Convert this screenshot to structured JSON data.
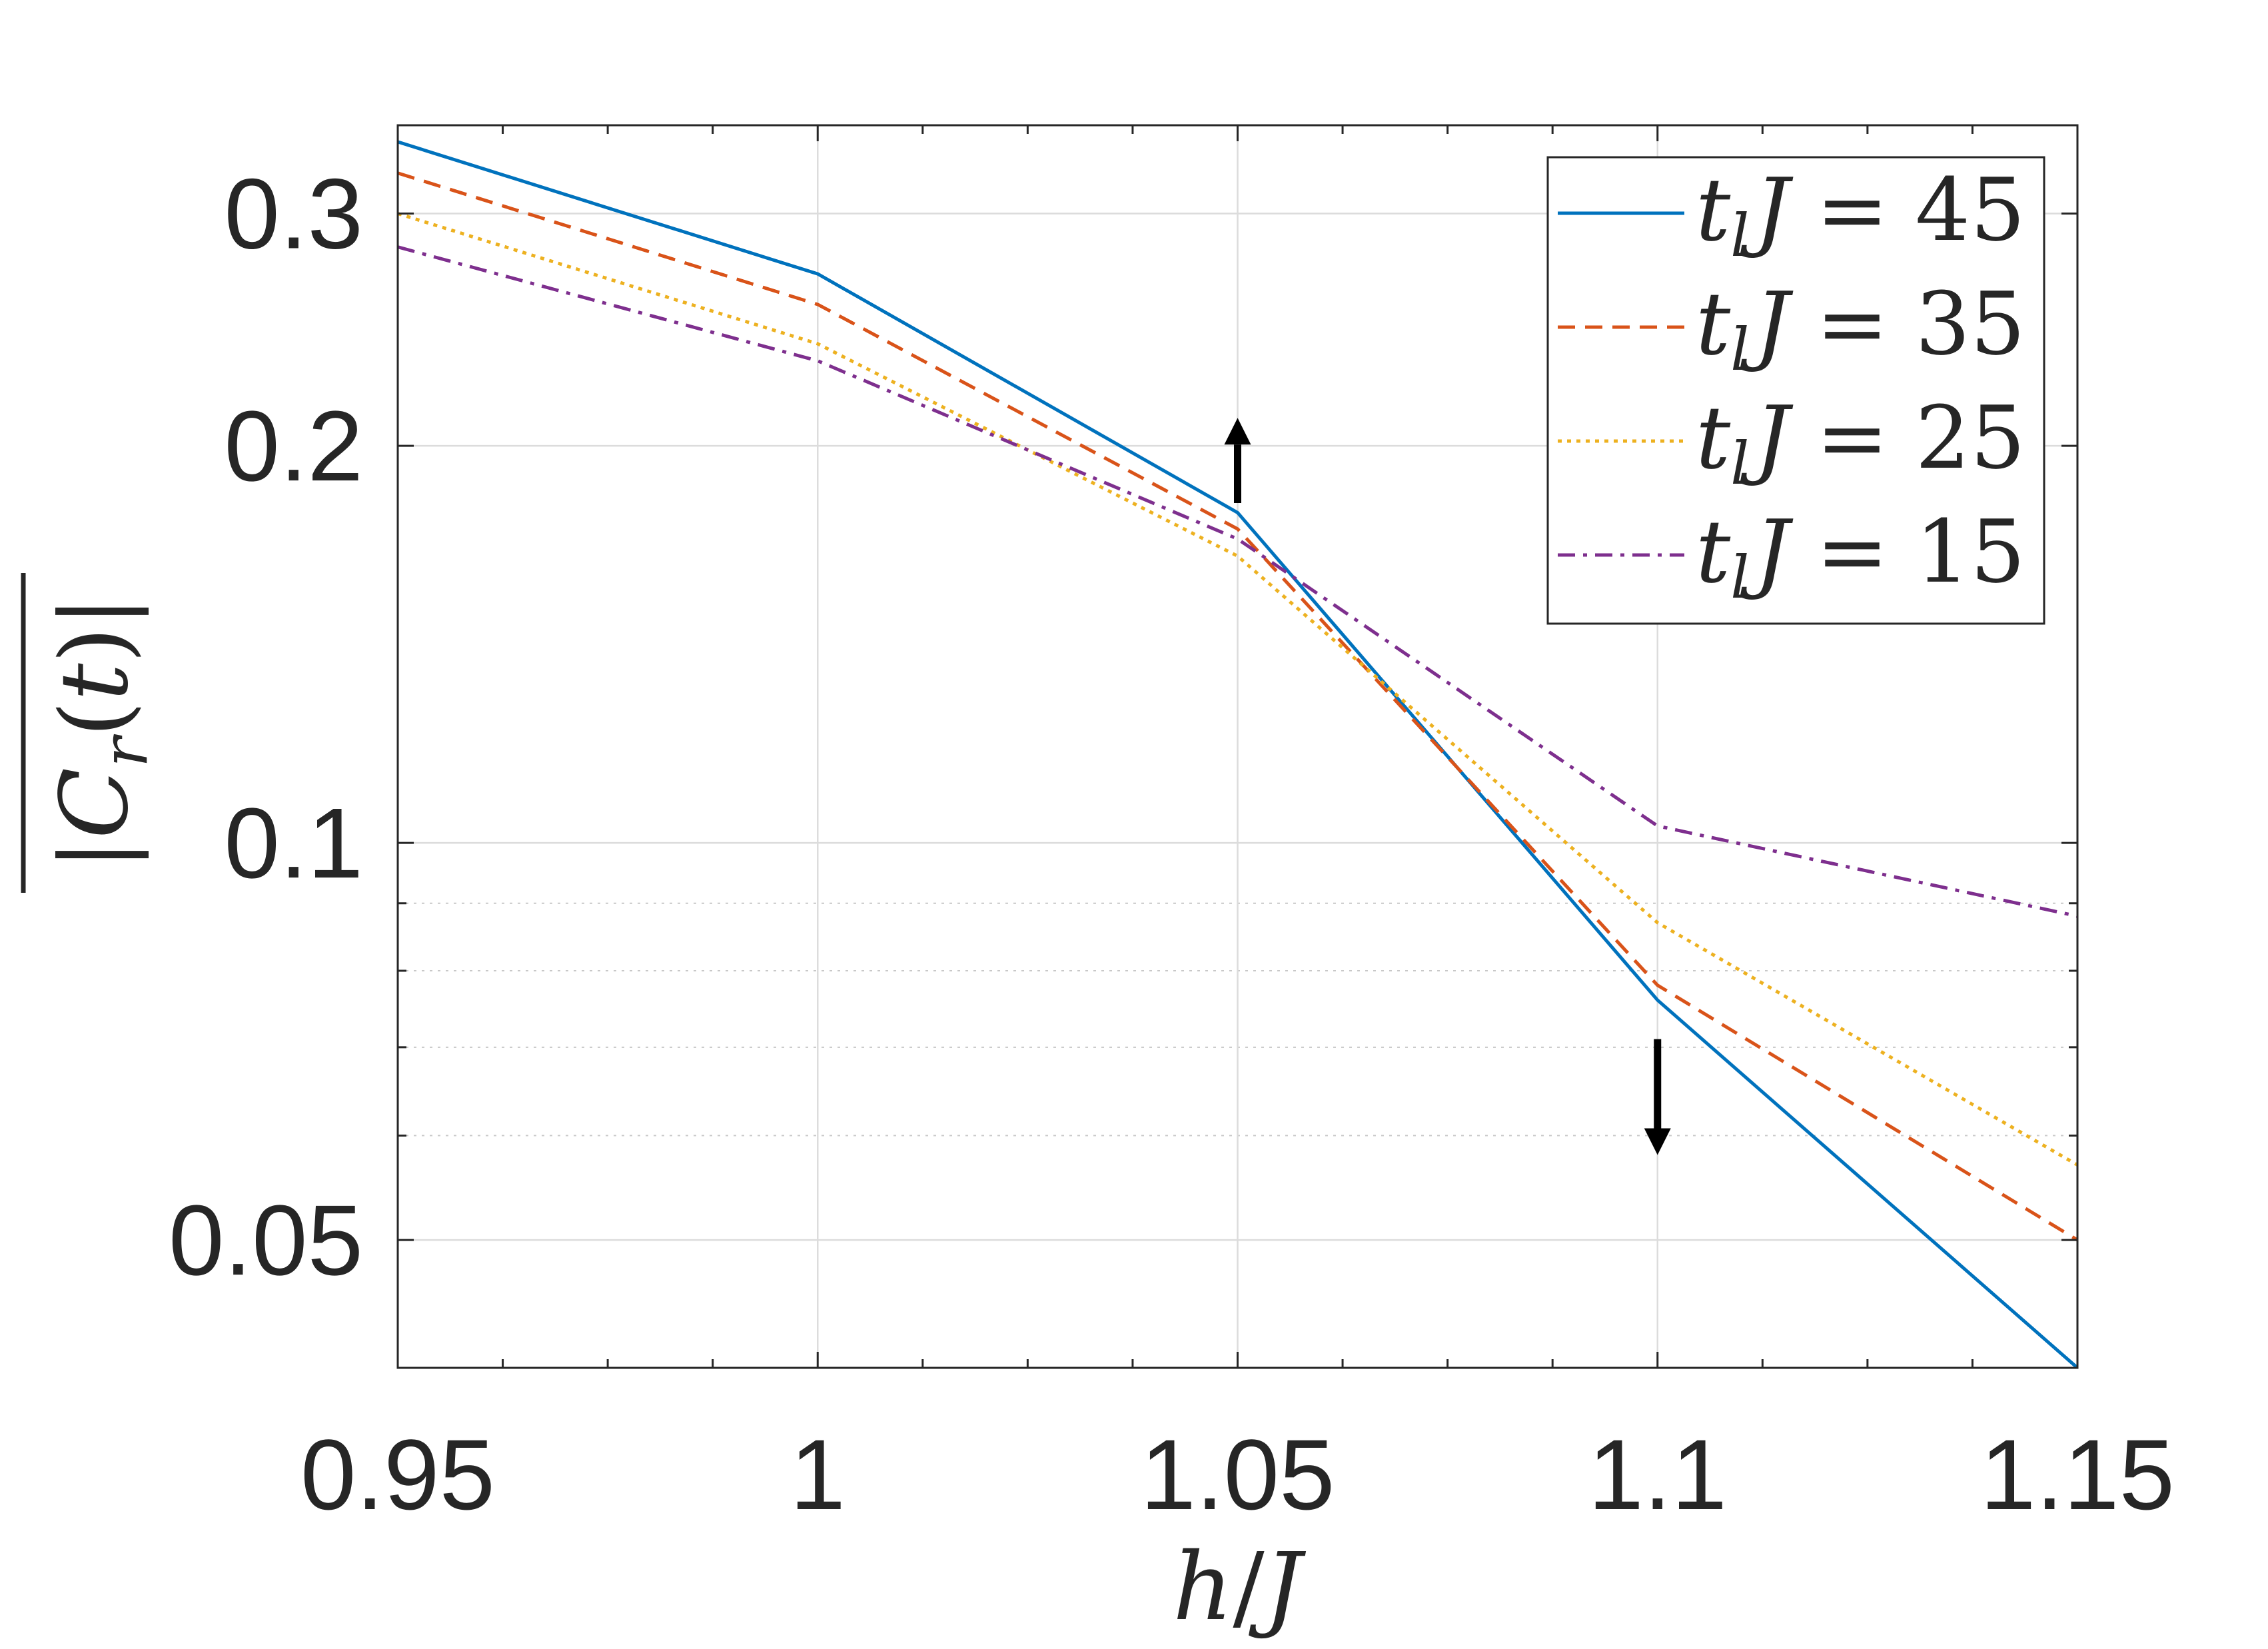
{
  "chart_data": {
    "type": "line",
    "xlabel": {
      "var_h": "h",
      "slash": "/",
      "var_J": "J"
    },
    "ylabel": {
      "bar_open": "|",
      "var_C": "C",
      "sub_r": "r",
      "paren_open": "(",
      "var_t": "t",
      "paren_close": ")",
      "bar_close": "|"
    },
    "y_scale": "log",
    "xlim": [
      0.95,
      1.15
    ],
    "ylim": [
      0.04,
      0.35
    ],
    "x_ticks": [
      0.95,
      1.0,
      1.05,
      1.1,
      1.15
    ],
    "x_tick_labels": [
      "0.95",
      "1",
      "1.05",
      "1.1",
      "1.15"
    ],
    "y_ticks": [
      0.05,
      0.1,
      0.2,
      0.3
    ],
    "y_tick_labels": [
      "0.05",
      "0.1",
      "0.2",
      "0.3"
    ],
    "grid": "on (major solid, minor dotted on y)",
    "legend_placement": "top-right",
    "x": [
      0.95,
      1.0,
      1.05,
      1.1,
      1.15
    ],
    "series": [
      {
        "name": "t_l J = 45",
        "legend": {
          "t": "t",
          "l": "l",
          "J": "J",
          "eq": "=",
          "val": "45"
        },
        "color": "#0072BD",
        "style": "solid",
        "values": [
          0.34,
          0.27,
          0.178,
          0.076,
          0.04
        ]
      },
      {
        "name": "t_l J = 35",
        "legend": {
          "t": "t",
          "l": "l",
          "J": "J",
          "eq": "=",
          "val": "35"
        },
        "color": "#D95319",
        "style": "dashed",
        "values": [
          0.322,
          0.256,
          0.173,
          0.078,
          0.05
        ]
      },
      {
        "name": "t_l J = 25",
        "legend": {
          "t": "t",
          "l": "l",
          "J": "J",
          "eq": "=",
          "val": "25"
        },
        "color": "#EDB120",
        "style": "dotted",
        "values": [
          0.3,
          0.239,
          0.165,
          0.087,
          0.057
        ]
      },
      {
        "name": "t_l J = 15",
        "legend": {
          "t": "t",
          "l": "l",
          "J": "J",
          "eq": "=",
          "val": "15"
        },
        "color": "#7E2F8E",
        "style": "dashdot",
        "values": [
          0.283,
          0.232,
          0.17,
          0.103,
          0.088
        ]
      }
    ],
    "annotations": [
      {
        "type": "arrow",
        "direction": "up",
        "x": 1.05,
        "y_from": 0.181,
        "y_to": 0.21
      },
      {
        "type": "arrow",
        "direction": "down",
        "x": 1.1,
        "y_from": 0.071,
        "y_to": 0.058
      }
    ]
  }
}
